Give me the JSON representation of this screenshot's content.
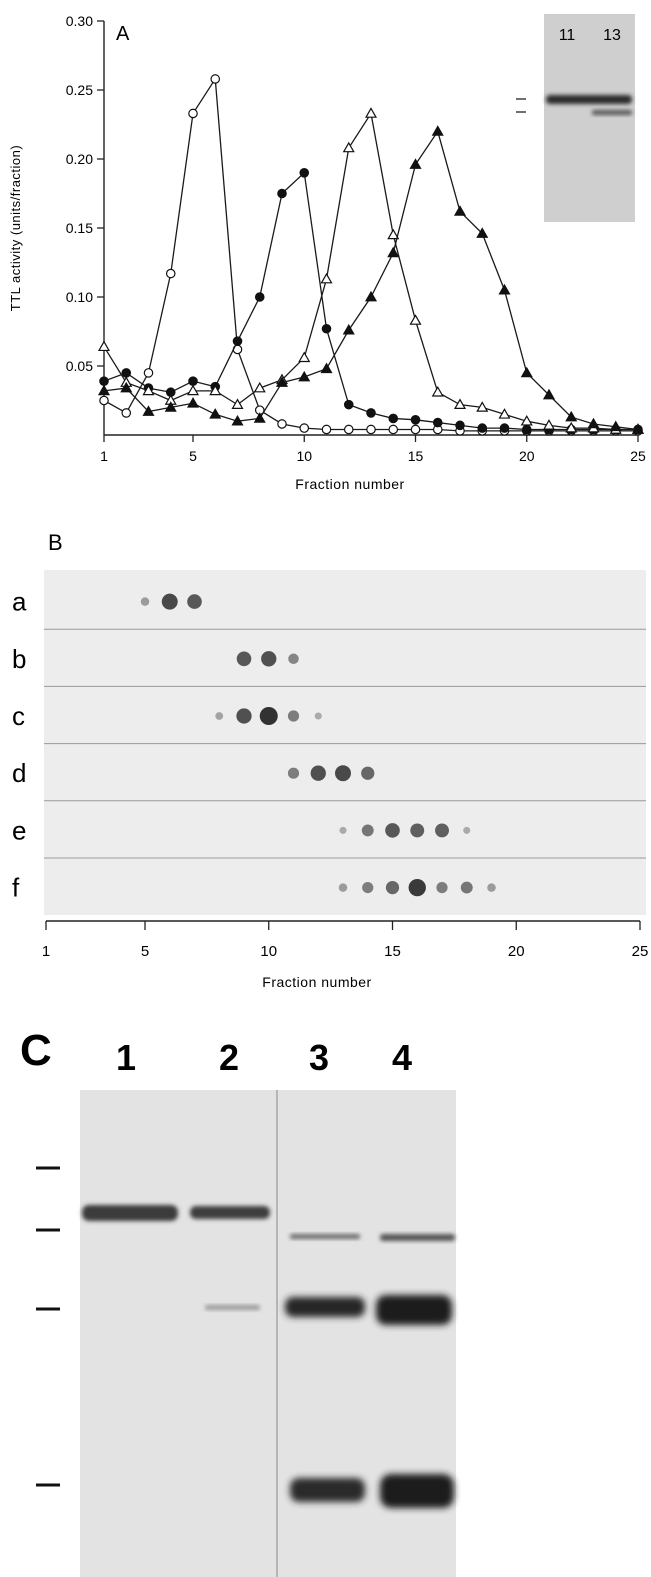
{
  "panel_a": {
    "label": "A",
    "inset_lanes": [
      "11",
      "13"
    ]
  },
  "panel_b": {
    "label": "B",
    "rows": [
      {
        "label": "a",
        "dots": [
          [
            5,
            0.3
          ],
          [
            6,
            0.85
          ],
          [
            7,
            0.75
          ]
        ]
      },
      {
        "label": "b",
        "dots": [
          [
            9,
            0.75
          ],
          [
            10,
            0.8
          ],
          [
            11,
            0.45
          ]
        ]
      },
      {
        "label": "c",
        "dots": [
          [
            8,
            0.25
          ],
          [
            9,
            0.8
          ],
          [
            10,
            1.0
          ],
          [
            11,
            0.5
          ],
          [
            12,
            0.2
          ]
        ]
      },
      {
        "label": "d",
        "dots": [
          [
            11,
            0.5
          ],
          [
            12,
            0.8
          ],
          [
            13,
            0.85
          ],
          [
            14,
            0.65
          ]
        ]
      },
      {
        "label": "e",
        "dots": [
          [
            13,
            0.2
          ],
          [
            14,
            0.55
          ],
          [
            15,
            0.75
          ],
          [
            16,
            0.7
          ],
          [
            17,
            0.7
          ],
          [
            18,
            0.2
          ]
        ]
      },
      {
        "label": "f",
        "dots": [
          [
            13,
            0.3
          ],
          [
            14,
            0.5
          ],
          [
            15,
            0.65
          ],
          [
            16,
            0.95
          ],
          [
            17,
            0.5
          ],
          [
            18,
            0.55
          ],
          [
            19,
            0.3
          ]
        ]
      }
    ],
    "xlabel": "Fraction number",
    "xticks": [
      1,
      5,
      10,
      15,
      20,
      25
    ]
  },
  "panel_c": {
    "label": "C",
    "lanes": [
      "1",
      "2",
      "3",
      "4"
    ]
  },
  "chart_data": [
    {
      "type": "line",
      "title": "",
      "xlabel": "Fraction number",
      "ylabel": "TTL activity (units/fraction)",
      "xlim": [
        1,
        25
      ],
      "ylim": [
        0,
        0.3
      ],
      "xticks": [
        1,
        5,
        10,
        15,
        20,
        25
      ],
      "yticks": [
        "0.05",
        "0.10",
        "0.15",
        "0.20",
        "0.25",
        "0.30"
      ],
      "x": [
        1,
        2,
        3,
        4,
        5,
        6,
        7,
        8,
        9,
        10,
        11,
        12,
        13,
        14,
        15,
        16,
        17,
        18,
        19,
        20,
        21,
        22,
        23,
        24,
        25
      ],
      "series": [
        {
          "marker": "open-circle",
          "values": [
            0.025,
            0.016,
            0.045,
            0.117,
            0.233,
            0.258,
            0.062,
            0.018,
            0.008,
            0.005,
            0.004,
            0.004,
            0.004,
            0.004,
            0.004,
            0.004,
            0.003,
            0.003,
            0.003,
            0.003,
            0.003,
            0.003,
            0.003,
            0.003,
            0.003
          ]
        },
        {
          "marker": "filled-circle",
          "values": [
            0.039,
            0.045,
            0.034,
            0.031,
            0.039,
            0.035,
            0.068,
            0.1,
            0.175,
            0.19,
            0.077,
            0.022,
            0.016,
            0.012,
            0.011,
            0.009,
            0.007,
            0.005,
            0.005,
            0.004,
            0.004,
            0.004,
            0.004,
            0.004,
            0.004
          ]
        },
        {
          "marker": "open-triangle",
          "values": [
            0.064,
            0.038,
            0.032,
            0.025,
            0.032,
            0.032,
            0.022,
            0.034,
            0.04,
            0.056,
            0.113,
            0.208,
            0.233,
            0.145,
            0.083,
            0.031,
            0.022,
            0.02,
            0.015,
            0.01,
            0.007,
            0.005,
            0.005,
            0.004,
            0.004
          ]
        },
        {
          "marker": "filled-triangle",
          "values": [
            0.032,
            0.034,
            0.017,
            0.02,
            0.023,
            0.015,
            0.01,
            0.012,
            0.038,
            0.042,
            0.048,
            0.076,
            0.1,
            0.132,
            0.196,
            0.22,
            0.162,
            0.146,
            0.105,
            0.045,
            0.029,
            0.013,
            0.008,
            0.006,
            0.004
          ]
        }
      ]
    }
  ]
}
